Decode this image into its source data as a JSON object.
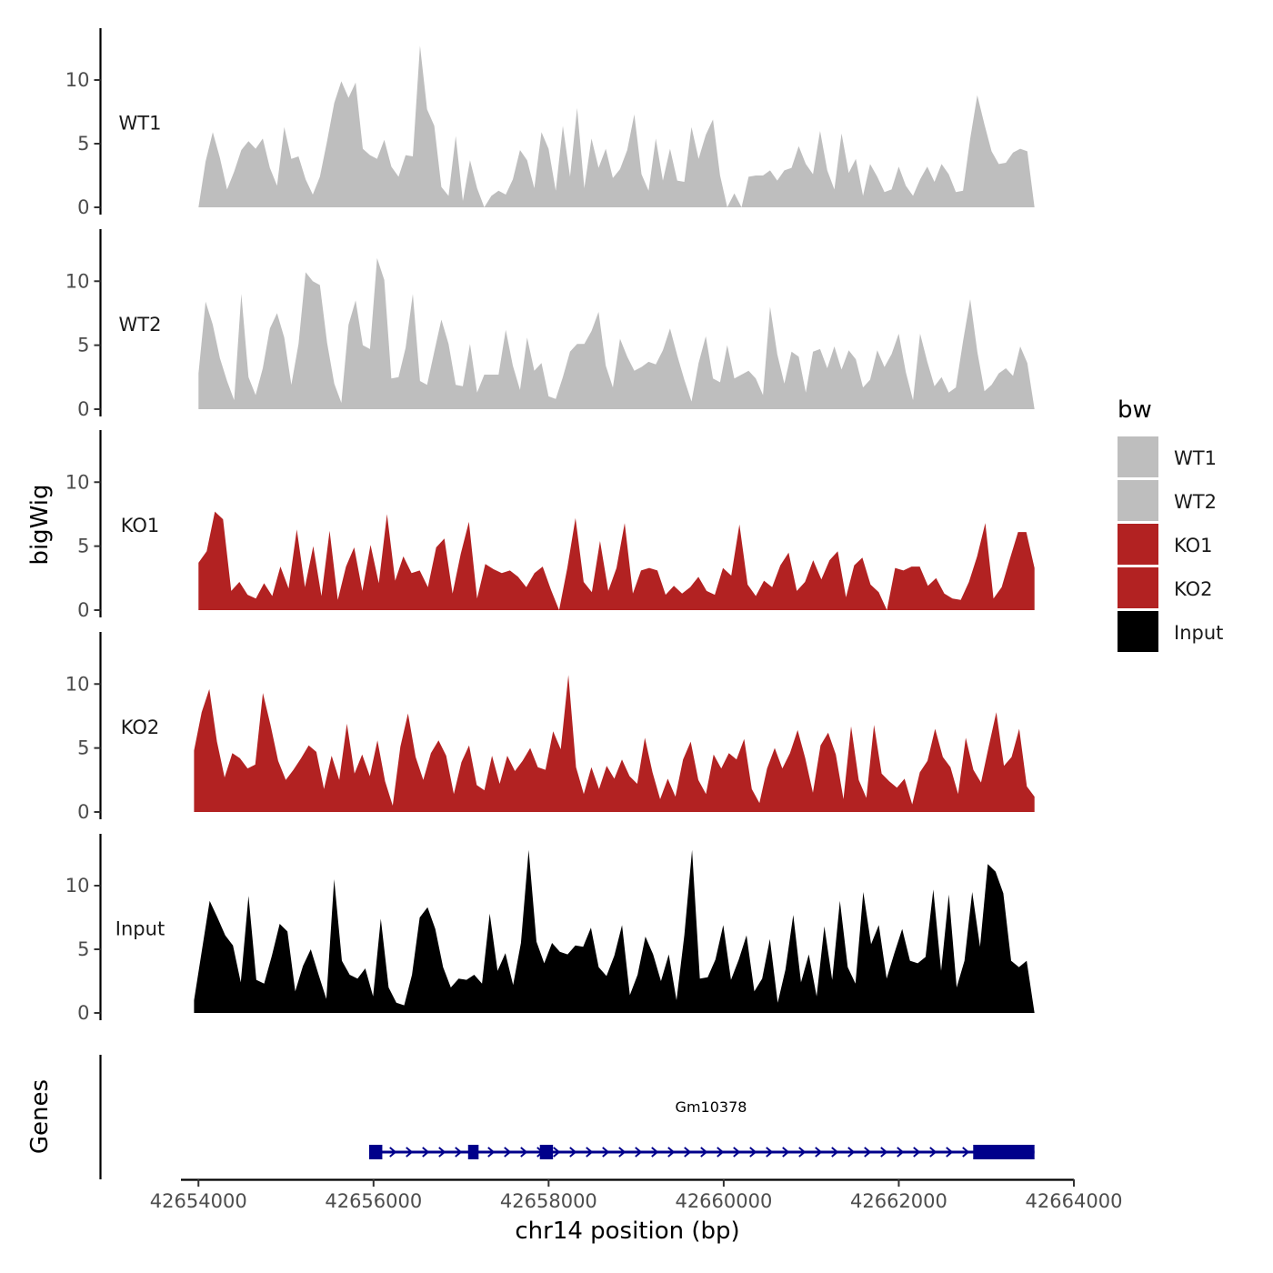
{
  "chart_data": {
    "type": "area",
    "chromosome": "chr14",
    "xlabel": "chr14 position (bp)",
    "ylabel": "bigWig",
    "genes_track_label": "Genes",
    "xlim": [
      42653800,
      42664000
    ],
    "x_ticks": [
      42654000,
      42656000,
      42658000,
      42660000,
      42662000,
      42664000
    ],
    "x_tick_labels": [
      "42654000",
      "42656000",
      "42658000",
      "42660000",
      "42662000",
      "42664000"
    ],
    "ylim": [
      0,
      13.5
    ],
    "y_ticks": [
      0,
      5,
      10
    ],
    "y_tick_labels": [
      "0",
      "5",
      "10"
    ],
    "tracks": [
      {
        "name": "WT1",
        "color": "#bebebe",
        "x_start": 42654000,
        "x_end": 42663550,
        "values": [
          0,
          3.6,
          5.9,
          3.9,
          1.4,
          2.8,
          4.5,
          5.2,
          4.6,
          5.4,
          3.1,
          1.7,
          6.3,
          3.8,
          4.0,
          2.2,
          1.0,
          2.4,
          5.2,
          8.2,
          9.9,
          8.6,
          9.8,
          4.6,
          4.1,
          3.8,
          5.3,
          3.2,
          2.4,
          4.1,
          4.0,
          12.7,
          7.7,
          6.4,
          1.6,
          0.9,
          5.6,
          0.5,
          3.7,
          1.5,
          0.0,
          0.9,
          1.3,
          1.0,
          2.2,
          4.5,
          3.7,
          1.5,
          5.9,
          4.6,
          1.3,
          6.4,
          2.4,
          7.8,
          1.5,
          5.4,
          3.1,
          4.6,
          2.3,
          3.0,
          4.5,
          7.3,
          2.6,
          1.3,
          5.4,
          2.1,
          4.6,
          2.1,
          2.0,
          6.3,
          3.8,
          5.7,
          6.9,
          2.5,
          0.0,
          1.1,
          0.0,
          2.4,
          2.5,
          2.5,
          2.9,
          2.1,
          2.9,
          3.1,
          4.8,
          3.4,
          2.6,
          6.0,
          2.9,
          1.4,
          5.8,
          2.7,
          3.8,
          0.9,
          3.4,
          2.4,
          1.2,
          1.4,
          3.2,
          1.7,
          0.9,
          2.2,
          3.2,
          2.0,
          3.4,
          2.6,
          1.2,
          1.3,
          5.4,
          8.8,
          6.5,
          4.4,
          3.4,
          3.5,
          4.3,
          4.6,
          4.4,
          0.0
        ]
      },
      {
        "name": "WT2",
        "color": "#bebebe",
        "x_start": 42654000,
        "x_end": 42663550,
        "values": [
          2.8,
          8.4,
          6.6,
          4.0,
          2.2,
          0.7,
          9.0,
          2.5,
          1.1,
          3.2,
          6.3,
          7.5,
          5.6,
          1.9,
          5.1,
          10.7,
          10.0,
          9.7,
          5.2,
          2.0,
          0.5,
          6.6,
          8.5,
          5.0,
          4.7,
          11.8,
          10.1,
          2.4,
          2.5,
          4.8,
          9.0,
          2.2,
          1.9,
          4.5,
          7.0,
          5.1,
          1.9,
          1.8,
          5.1,
          1.3,
          2.7,
          2.7,
          2.7,
          6.2,
          3.4,
          1.5,
          5.6,
          3.0,
          3.6,
          1.0,
          0.8,
          2.5,
          4.5,
          5.1,
          5.1,
          6.1,
          7.6,
          3.4,
          1.7,
          5.5,
          4.1,
          3.0,
          3.3,
          3.7,
          3.5,
          4.6,
          6.3,
          4.2,
          2.3,
          0.6,
          3.6,
          5.7,
          2.4,
          2.1,
          5.0,
          2.4,
          2.7,
          3.0,
          2.4,
          1.1,
          8.0,
          4.3,
          2.0,
          4.5,
          4.1,
          1.3,
          4.5,
          4.7,
          3.2,
          4.9,
          3.1,
          4.6,
          3.9,
          1.7,
          2.3,
          4.6,
          3.3,
          4.3,
          5.9,
          2.9,
          0.7,
          5.9,
          3.7,
          1.8,
          2.5,
          1.3,
          1.7,
          5.3,
          8.6,
          4.5,
          1.4,
          1.9,
          2.8,
          3.2,
          2.6,
          4.9,
          3.6,
          0.0
        ]
      },
      {
        "name": "KO1",
        "color": "#b22222",
        "x_start": 42654000,
        "x_end": 42663550,
        "values": [
          3.7,
          4.6,
          7.7,
          7.1,
          1.5,
          2.2,
          1.2,
          0.9,
          2.1,
          1.1,
          3.4,
          1.7,
          6.3,
          1.8,
          5.0,
          1.1,
          6.2,
          0.8,
          3.4,
          4.9,
          1.5,
          5.1,
          2.1,
          7.5,
          2.3,
          4.2,
          2.9,
          3.1,
          1.8,
          4.9,
          5.6,
          1.3,
          4.4,
          6.9,
          0.9,
          3.6,
          3.2,
          2.9,
          3.1,
          2.6,
          1.8,
          2.9,
          3.4,
          1.6,
          0.0,
          3.3,
          7.2,
          2.2,
          1.4,
          5.4,
          1.5,
          3.3,
          6.8,
          1.3,
          3.1,
          3.3,
          3.1,
          1.2,
          1.9,
          1.3,
          1.8,
          2.6,
          1.5,
          1.2,
          3.3,
          2.7,
          6.7,
          2.0,
          1.1,
          2.3,
          1.8,
          3.5,
          4.5,
          1.5,
          2.2,
          3.9,
          2.4,
          3.9,
          4.6,
          1.0,
          3.5,
          4.1,
          2.0,
          1.4,
          0.0,
          3.3,
          3.1,
          3.4,
          3.4,
          1.9,
          2.5,
          1.3,
          0.9,
          0.8,
          2.2,
          4.2,
          6.8,
          0.9,
          1.8,
          4.0,
          6.1,
          6.1,
          3.3
        ]
      },
      {
        "name": "KO2",
        "color": "#b22222",
        "x_start": 42653950,
        "x_end": 42663550,
        "values": [
          4.8,
          7.8,
          9.6,
          5.5,
          2.7,
          4.6,
          4.2,
          3.4,
          3.7,
          9.3,
          6.8,
          4.0,
          2.5,
          3.3,
          4.2,
          5.2,
          4.7,
          1.8,
          4.4,
          2.5,
          6.9,
          3.0,
          4.5,
          2.8,
          5.6,
          2.4,
          0.5,
          5.1,
          7.7,
          4.3,
          2.5,
          4.6,
          5.6,
          4.4,
          1.4,
          3.9,
          5.2,
          2.1,
          1.7,
          4.4,
          2.2,
          4.4,
          3.2,
          4.0,
          5.0,
          3.5,
          3.3,
          6.3,
          4.9,
          10.7,
          3.5,
          1.4,
          3.5,
          1.8,
          3.6,
          2.6,
          4.1,
          2.8,
          2.2,
          5.8,
          3.1,
          1.0,
          2.6,
          1.2,
          4.1,
          5.5,
          2.5,
          1.4,
          4.5,
          3.4,
          4.6,
          4.1,
          5.7,
          1.8,
          0.7,
          3.4,
          5.0,
          3.4,
          4.6,
          6.4,
          4.2,
          1.5,
          5.2,
          6.2,
          4.5,
          1.0,
          6.7,
          2.5,
          1.1,
          6.8,
          3.0,
          2.4,
          1.9,
          2.6,
          0.6,
          3.1,
          4.0,
          6.5,
          4.3,
          3.5,
          1.4,
          5.8,
          3.3,
          2.3,
          5.1,
          7.8,
          3.6,
          4.3,
          6.5,
          2.0,
          1.2
        ]
      },
      {
        "name": "Input",
        "color": "#000000",
        "x_start": 42653950,
        "x_end": 42663550,
        "values": [
          1.0,
          4.9,
          8.8,
          7.5,
          6.1,
          5.3,
          2.4,
          9.2,
          2.6,
          2.3,
          4.5,
          7.0,
          6.4,
          1.7,
          3.7,
          5.0,
          3.0,
          1.1,
          10.5,
          4.1,
          3.0,
          2.7,
          3.5,
          1.3,
          7.4,
          2.0,
          0.8,
          0.6,
          3.0,
          7.5,
          8.3,
          6.6,
          3.6,
          2.0,
          2.7,
          2.6,
          3.0,
          2.3,
          7.8,
          3.3,
          4.7,
          2.2,
          5.5,
          12.8,
          5.6,
          3.9,
          5.5,
          4.8,
          4.6,
          5.3,
          5.2,
          6.7,
          3.6,
          2.9,
          4.5,
          6.9,
          1.4,
          3.0,
          6.0,
          4.6,
          2.5,
          4.6,
          1.0,
          6.1,
          12.8,
          2.7,
          2.8,
          4.2,
          6.9,
          2.6,
          4.2,
          6.1,
          1.7,
          2.7,
          5.8,
          0.8,
          3.4,
          7.7,
          2.4,
          4.6,
          1.3,
          6.8,
          2.6,
          8.8,
          3.6,
          2.3,
          9.5,
          5.4,
          6.9,
          2.7,
          4.7,
          6.6,
          4.1,
          3.9,
          4.4,
          9.7,
          3.3,
          9.3,
          2.0,
          4.1,
          9.5,
          5.2,
          11.7,
          11.1,
          9.4,
          4.1,
          3.6,
          4.1,
          0.0
        ]
      }
    ],
    "legend": {
      "title": "bw",
      "position": "right",
      "entries": [
        {
          "label": "WT1",
          "color": "#bebebe"
        },
        {
          "label": "WT2",
          "color": "#bebebe"
        },
        {
          "label": "KO1",
          "color": "#b22222"
        },
        {
          "label": "KO2",
          "color": "#b22222"
        },
        {
          "label": "Input",
          "color": "#000000"
        }
      ]
    },
    "gene": {
      "name": "Gm10378",
      "color": "#00008b",
      "strand": "+",
      "start": 42656000,
      "end": 42663550,
      "exons": [
        {
          "start": 42655950,
          "end": 42656100
        },
        {
          "start": 42657080,
          "end": 42657200
        },
        {
          "start": 42657900,
          "end": 42658050
        },
        {
          "start": 42662850,
          "end": 42663550
        }
      ]
    }
  }
}
